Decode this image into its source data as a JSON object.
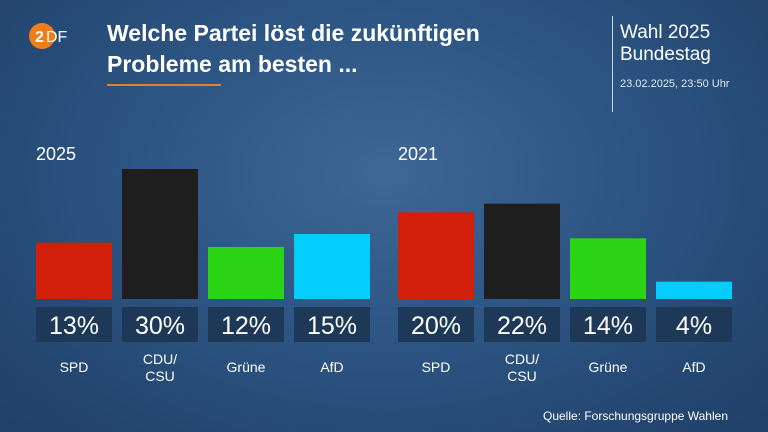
{
  "header": {
    "logo_text": "ZDF",
    "title_line1": "Welche Partei löst die zukünftigen",
    "title_line2": "Probleme am besten ...",
    "election_line1": "Wahl 2025",
    "election_line2": "Bundestag",
    "timestamp": "23.02.2025, 23:50 Uhr"
  },
  "colors": {
    "accent": "#f07d1a",
    "background": "#2d5583",
    "label_box": "#1e3957"
  },
  "chart_data": [
    {
      "type": "bar",
      "title": "2025",
      "categories": [
        "SPD",
        "CDU/\nCSU",
        "Grüne",
        "AfD"
      ],
      "values": [
        13,
        30,
        12,
        15
      ],
      "labels": [
        "13%",
        "30%",
        "12%",
        "15%"
      ],
      "colors": [
        "#d11f0a",
        "#1e1e1e",
        "#2bd414",
        "#05cdfb"
      ],
      "unit": "%"
    },
    {
      "type": "bar",
      "title": "2021",
      "categories": [
        "SPD",
        "CDU/\nCSU",
        "Grüne",
        "AfD"
      ],
      "values": [
        20,
        22,
        14,
        4
      ],
      "labels": [
        "20%",
        "22%",
        "14%",
        "4%"
      ],
      "colors": [
        "#d11f0a",
        "#1e1e1e",
        "#2bd414",
        "#05cdfb"
      ],
      "unit": "%"
    }
  ],
  "footer": {
    "source": "Quelle: Forschungsgruppe Wahlen"
  }
}
